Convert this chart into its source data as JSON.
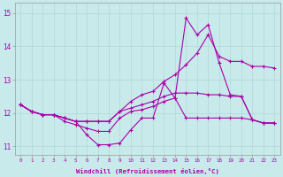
{
  "title": "",
  "xlabel": "Windchill (Refroidissement éolien,°C)",
  "ylabel": "",
  "bg_color": "#c8eaea",
  "grid_color": "#b0d8d8",
  "line_color": "#aa00aa",
  "xlim": [
    -0.5,
    23.5
  ],
  "ylim": [
    10.75,
    15.3
  ],
  "xticks": [
    0,
    1,
    2,
    3,
    4,
    5,
    6,
    7,
    8,
    9,
    10,
    11,
    12,
    13,
    14,
    15,
    16,
    17,
    18,
    19,
    20,
    21,
    22,
    23
  ],
  "yticks": [
    11,
    12,
    13,
    14,
    15
  ],
  "series": [
    [
      12.25,
      12.05,
      11.95,
      11.95,
      11.85,
      11.75,
      11.35,
      11.05,
      11.05,
      11.1,
      11.5,
      11.85,
      11.85,
      12.9,
      12.45,
      14.85,
      14.35,
      14.65,
      13.5,
      12.55,
      12.5,
      11.8,
      11.7,
      11.7
    ],
    [
      12.25,
      12.05,
      11.95,
      11.95,
      11.85,
      11.75,
      11.75,
      11.75,
      11.75,
      12.05,
      12.35,
      12.55,
      12.65,
      12.95,
      13.15,
      13.45,
      13.8,
      14.35,
      13.7,
      13.55,
      13.55,
      13.4,
      13.4,
      13.35
    ],
    [
      12.25,
      12.05,
      11.95,
      11.95,
      11.85,
      11.75,
      11.75,
      11.75,
      11.75,
      12.05,
      12.15,
      12.25,
      12.35,
      12.5,
      12.6,
      12.6,
      12.6,
      12.55,
      12.55,
      12.5,
      12.5,
      11.8,
      11.7,
      11.7
    ],
    [
      12.25,
      12.05,
      11.95,
      11.95,
      11.75,
      11.65,
      11.55,
      11.45,
      11.45,
      11.85,
      12.05,
      12.1,
      12.2,
      12.35,
      12.45,
      11.85,
      11.85,
      11.85,
      11.85,
      11.85,
      11.85,
      11.8,
      11.7,
      11.7
    ]
  ]
}
